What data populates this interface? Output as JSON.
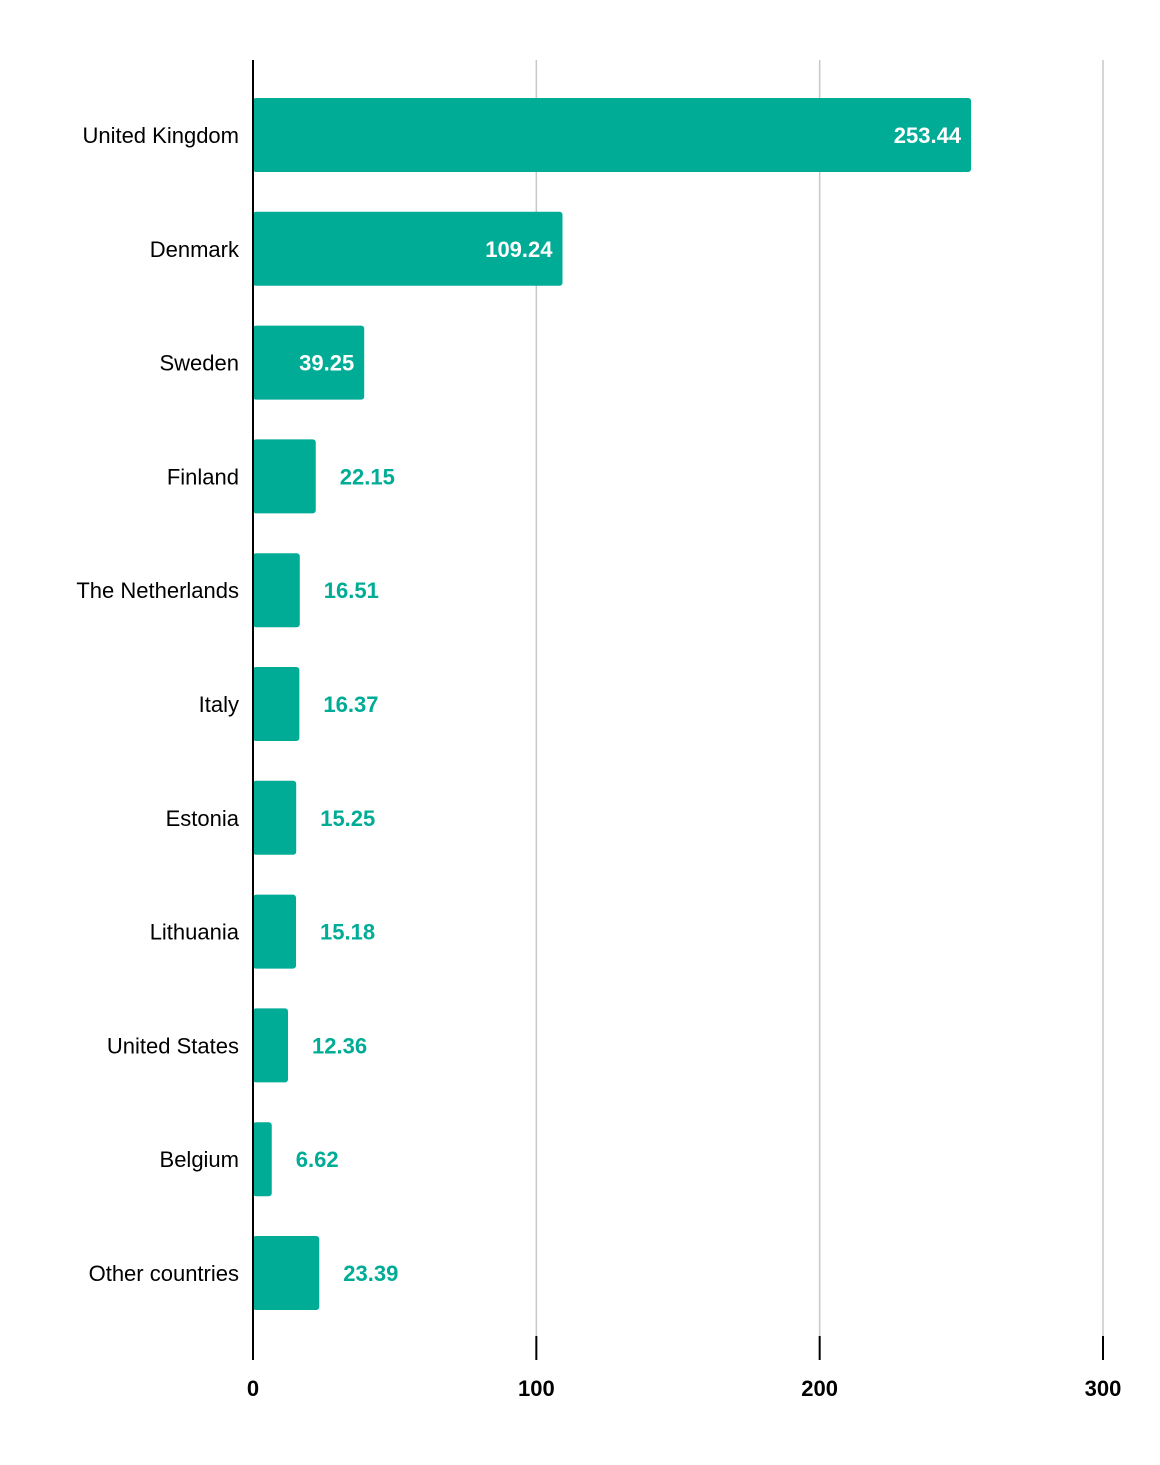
{
  "chart_data": {
    "type": "bar",
    "orientation": "horizontal",
    "categories": [
      "United Kingdom",
      "Denmark",
      "Sweden",
      "Finland",
      "The Netherlands",
      "Italy",
      "Estonia",
      "Lithuania",
      "United States",
      "Belgium",
      "Other countries"
    ],
    "values": [
      253.44,
      109.24,
      39.25,
      22.15,
      16.51,
      16.37,
      15.25,
      15.18,
      12.36,
      6.62,
      23.39
    ],
    "data_labels": [
      "253.44",
      "109.24",
      "39.25",
      "22.15",
      "16.51",
      "16.37",
      "15.25",
      "15.18",
      "12.36",
      "6.62",
      "23.39"
    ],
    "xlim": [
      0,
      300
    ],
    "x_ticks": [
      0,
      100,
      200,
      300
    ],
    "x_tick_labels": [
      "0",
      "100",
      "200",
      "300"
    ],
    "grid": "vertical",
    "legend": "none",
    "title": "",
    "xlabel": "",
    "ylabel": "",
    "colors": {
      "bar": "#00ac96",
      "label_inside": "#ffffff",
      "label_outside": "#00ac96",
      "grid": "#c8c8c8",
      "axis": "#000000",
      "text": "#000000"
    }
  }
}
